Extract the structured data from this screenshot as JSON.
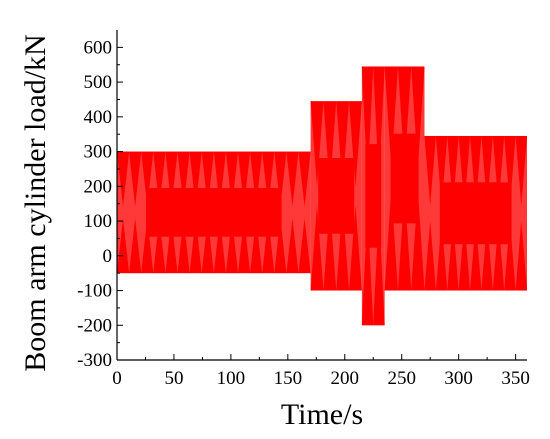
{
  "chart_data": {
    "type": "area",
    "title": "",
    "xlabel": "Time/s",
    "ylabel": "Boom arm cylinder load/kN",
    "xlim": [
      0,
      360
    ],
    "ylim": [
      -300,
      650
    ],
    "x_ticks": [
      0,
      50,
      100,
      150,
      200,
      250,
      300,
      350
    ],
    "y_ticks": [
      -300,
      -200,
      -100,
      0,
      100,
      200,
      300,
      400,
      500,
      600
    ],
    "grid": false,
    "legend": "none",
    "series": [
      {
        "color": "#ff0000",
        "segments": [
          {
            "x_start": 0,
            "x_end": 170,
            "y_min": -50,
            "y_max": 300
          },
          {
            "x_start": 170,
            "x_end": 215,
            "y_min": -100,
            "y_max": 445
          },
          {
            "x_start": 215,
            "x_end": 235,
            "y_min": -200,
            "y_max": 545
          },
          {
            "x_start": 235,
            "x_end": 270,
            "y_min": -100,
            "y_max": 545
          },
          {
            "x_start": 270,
            "x_end": 360,
            "y_min": -100,
            "y_max": 345
          }
        ]
      }
    ]
  }
}
